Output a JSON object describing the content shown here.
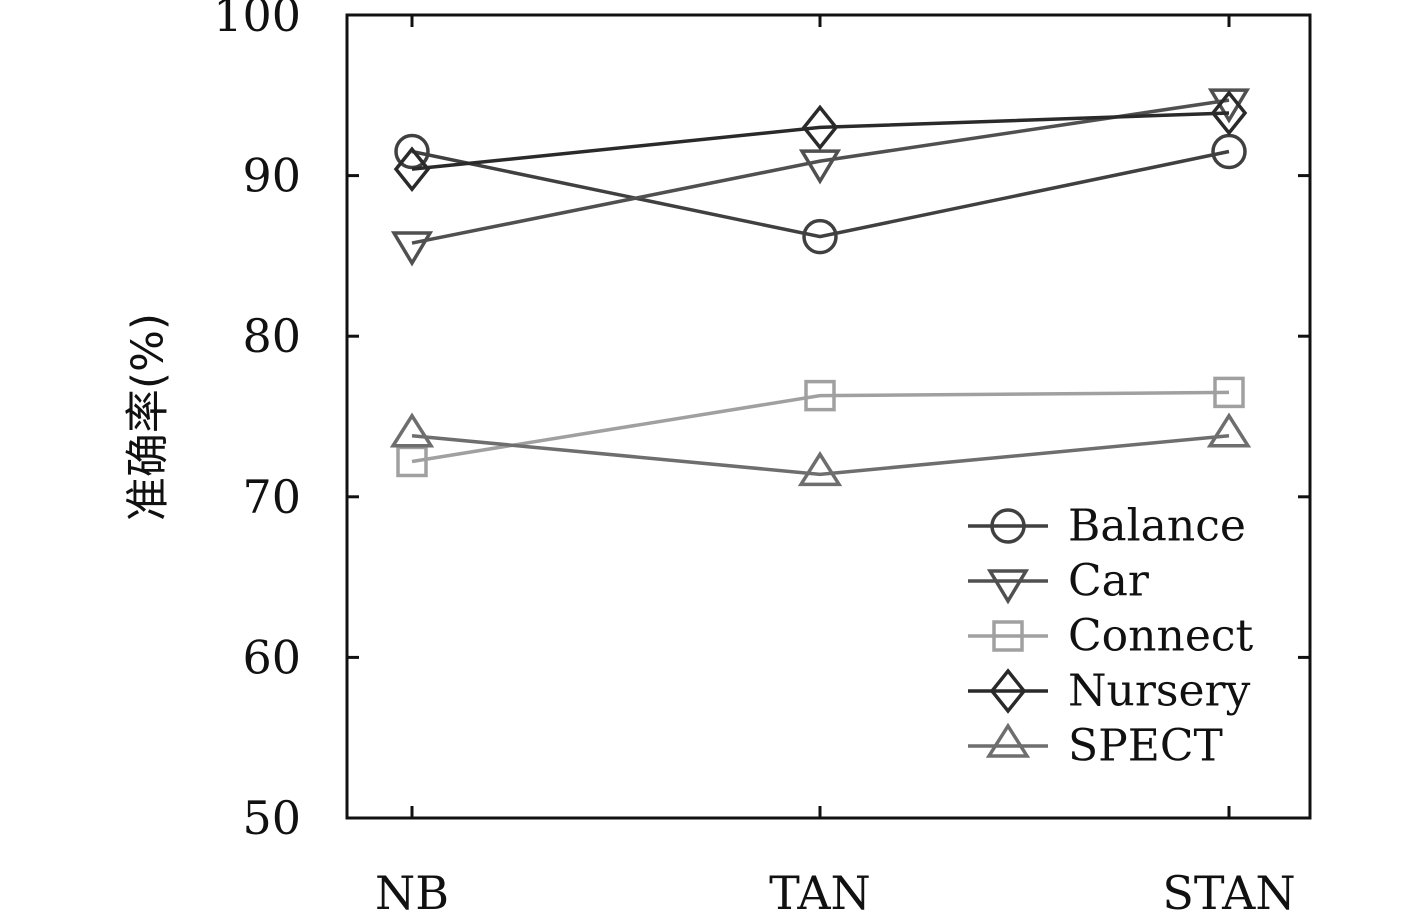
{
  "chart_data": {
    "type": "line",
    "title": "",
    "xlabel": "",
    "ylabel": "准确率(%)",
    "categories": [
      "NB",
      "TAN",
      "STAN"
    ],
    "ylim": [
      50,
      100
    ],
    "yticks": [
      50,
      60,
      70,
      80,
      90,
      100
    ],
    "grid": false,
    "legend_position": "bottom-right",
    "series": [
      {
        "name": "Balance",
        "marker": "circle",
        "color": "#404040",
        "values": [
          91.5,
          86.2,
          91.5
        ]
      },
      {
        "name": "Car",
        "marker": "triangle-down",
        "color": "#505050",
        "values": [
          85.8,
          90.9,
          94.7
        ]
      },
      {
        "name": "Connect",
        "marker": "square",
        "color": "#a0a0a0",
        "values": [
          72.2,
          76.3,
          76.5
        ]
      },
      {
        "name": "Nursery",
        "marker": "diamond",
        "color": "#2a2a2a",
        "values": [
          90.4,
          93.0,
          93.9
        ]
      },
      {
        "name": "SPECT",
        "marker": "triangle-up",
        "color": "#6e6e6e",
        "values": [
          73.8,
          71.4,
          73.8
        ]
      }
    ]
  }
}
